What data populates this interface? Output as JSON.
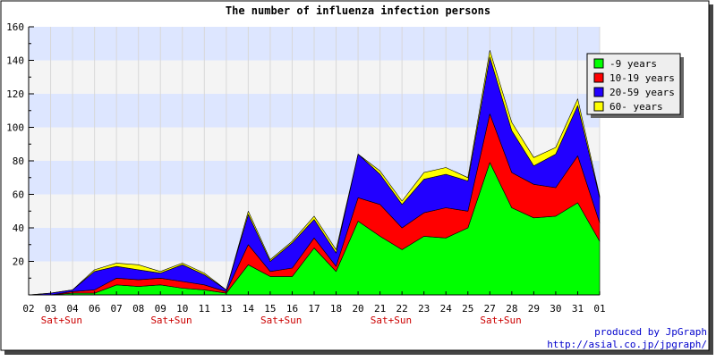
{
  "chart_data": {
    "type": "area",
    "stacked": true,
    "title": "The number of influenza infection persons",
    "ylim": [
      0,
      160
    ],
    "yticks": [
      20,
      40,
      60,
      80,
      100,
      120,
      140,
      160
    ],
    "x": [
      "02",
      "03",
      "04",
      "06",
      "07",
      "08",
      "09",
      "10",
      "11",
      "13",
      "14",
      "15",
      "16",
      "17",
      "18",
      "20",
      "21",
      "22",
      "23",
      "24",
      "25",
      "27",
      "28",
      "29",
      "30",
      "31",
      "01"
    ],
    "weekend_marker": "Sat+Sun",
    "weekend_indices": [
      1,
      6,
      11,
      16,
      21
    ],
    "grid": true,
    "legend_placement": "right",
    "series": [
      {
        "name": "-9 years",
        "color": "#00ff00",
        "values": [
          0,
          0,
          1,
          1,
          6,
          5,
          6,
          4,
          3,
          1,
          18,
          11,
          11,
          28,
          14,
          44,
          35,
          27,
          35,
          34,
          40,
          79,
          52,
          46,
          47,
          55,
          32
        ]
      },
      {
        "name": "10-19 years",
        "color": "#ff0000",
        "values": [
          0,
          0,
          1,
          2,
          4,
          4,
          4,
          4,
          3,
          1,
          12,
          3,
          5,
          6,
          3,
          14,
          19,
          13,
          14,
          18,
          10,
          29,
          21,
          20,
          17,
          28,
          11
        ]
      },
      {
        "name": "20-59 years",
        "color": "#2200ff",
        "values": [
          0,
          1,
          1,
          11,
          7,
          6,
          3,
          10,
          6,
          1,
          18,
          6,
          15,
          11,
          8,
          26,
          18,
          14,
          20,
          20,
          18,
          34,
          25,
          11,
          20,
          30,
          15
        ]
      },
      {
        "name": "60- years",
        "color": "#ffff00",
        "values": [
          0,
          0,
          0,
          1,
          2,
          3,
          1,
          1,
          1,
          0,
          2,
          1,
          1,
          2,
          2,
          0,
          2,
          2,
          4,
          4,
          2,
          4,
          5,
          5,
          4,
          4,
          1
        ]
      }
    ]
  },
  "credit": {
    "line1": "produced by JpGraph",
    "line2": "http://asial.co.jp/jpgraph/"
  }
}
